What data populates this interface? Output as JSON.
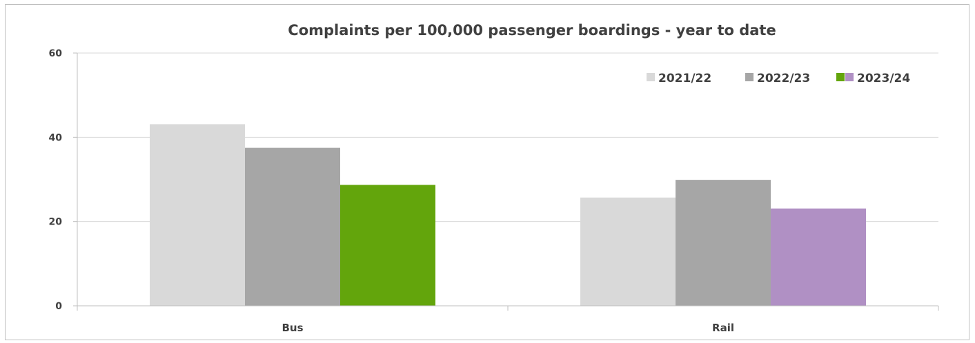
{
  "chart_data": {
    "type": "bar",
    "title": "Complaints per 100,000 passenger boardings - year to date",
    "xlabel": "",
    "ylabel": "",
    "categories": [
      "Bus",
      "Rail"
    ],
    "ylim": [
      0,
      60
    ],
    "yticks": [
      "0",
      "20",
      "40",
      "60"
    ],
    "grid": true,
    "legend_position": "top-right",
    "series": [
      {
        "name": "2021/22",
        "values": [
          43.1,
          25.7
        ],
        "colors": [
          "#d9d9d9",
          "#d9d9d9"
        ]
      },
      {
        "name": "2022/23",
        "values": [
          37.5,
          29.9
        ],
        "colors": [
          "#a6a6a6",
          "#a6a6a6"
        ]
      },
      {
        "name": "2023/24",
        "values": [
          28.7,
          23.1
        ],
        "colors": [
          "#63a50c",
          "#b090c4"
        ]
      }
    ],
    "legend": [
      {
        "label": "2021/22",
        "swatches": [
          "#d9d9d9"
        ]
      },
      {
        "label": "2022/23",
        "swatches": [
          "#a6a6a6"
        ]
      },
      {
        "label": "2023/24",
        "swatches": [
          "#63a50c",
          "#b090c4"
        ]
      }
    ]
  }
}
